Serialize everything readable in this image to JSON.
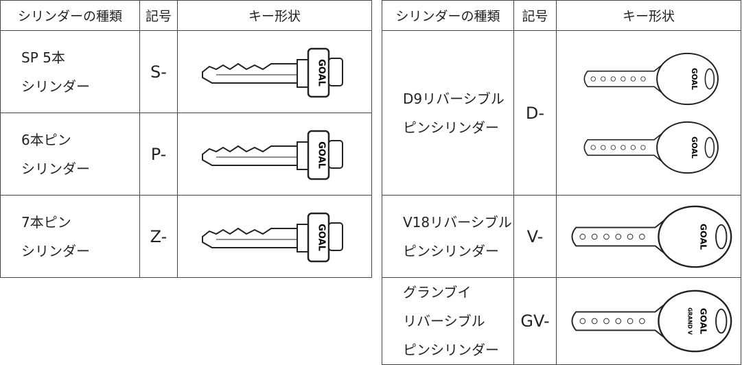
{
  "tables": [
    {
      "header": [
        "シリンダーの種類",
        "記号",
        "キー形状"
      ],
      "rows": [
        {
          "name": [
            "SP 5本",
            "シリンダー"
          ],
          "code": "S-"
        },
        {
          "name": [
            "6本ピン",
            "シリンダー"
          ],
          "code": "P-"
        },
        {
          "name": [
            "7本ピン",
            "シリンダー"
          ],
          "code": "Z-"
        }
      ]
    },
    {
      "header": [
        "シリンダーの種類",
        "記号",
        "キー形状"
      ],
      "rows": [
        {
          "name": [
            "D9リバーシブル",
            "ピンシリンダー"
          ],
          "code": "D-"
        },
        {
          "name": [
            "V18リバーシブル",
            "ピンシリンダー"
          ],
          "code": "V-"
        },
        {
          "name": [
            "グランブイ",
            "リバーシブル",
            "ピンシリンダー"
          ],
          "code": "GV-"
        }
      ]
    }
  ],
  "key_logo": "GOAL",
  "grand_v_logo": "GRAND V"
}
